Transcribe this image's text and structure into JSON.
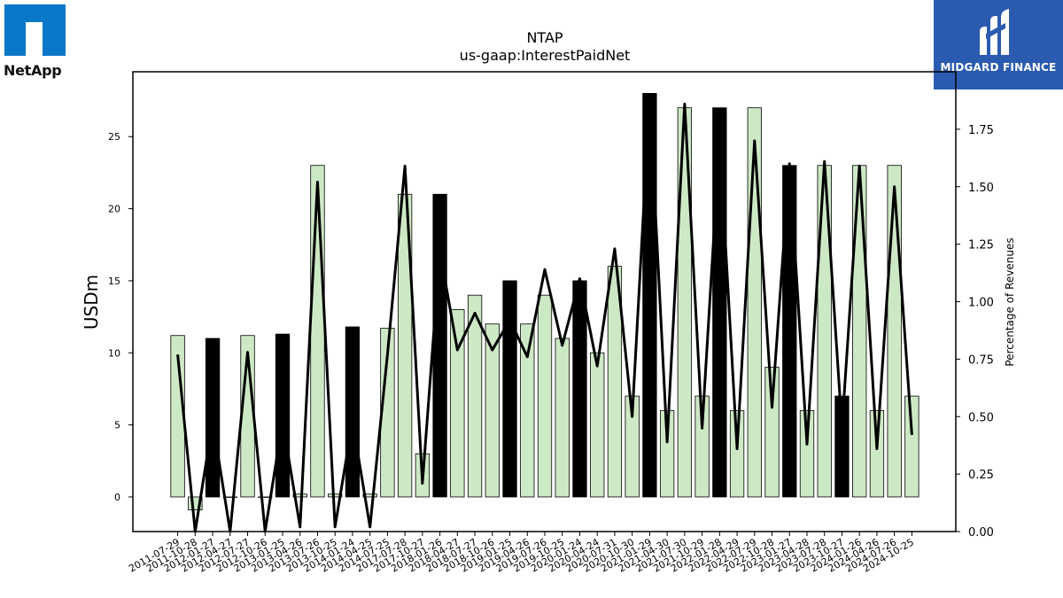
{
  "logos": {
    "left_text": "NetApp",
    "right_text": "MIDGARD FINANCE"
  },
  "chart_data": {
    "type": "bar",
    "title": "NTAP",
    "subtitle": "us-gaap:InterestPaidNet",
    "ylabel": "USDm",
    "y2label": "Percentage of Revenues",
    "ylim": [
      -2.4,
      29.5
    ],
    "y2lim": [
      0.0,
      2.0
    ],
    "yticks": [
      0,
      5,
      10,
      15,
      20,
      25
    ],
    "y2ticks": [
      "0.00",
      "0.25",
      "0.50",
      "0.75",
      "1.00",
      "1.25",
      "1.50",
      "1.75"
    ],
    "tick_labels": [
      "2011-07-29",
      "2011-10-28",
      "2012-01-27",
      "2012-04-27",
      "2012-07-27",
      "2012-10-26",
      "2013-01-25",
      "2013-04-26",
      "2013-07-26",
      "2013-10-25",
      "2014-01-24",
      "2014-04-25",
      "2014-07-25",
      "2017-07-28",
      "2017-10-27",
      "2018-01-26",
      "2018-04-27",
      "2018-07-27",
      "2018-10-26",
      "2019-01-25",
      "2019-04-26",
      "2019-07-26",
      "2019-10-25",
      "2020-01-24",
      "2020-04-24",
      "2020-07-31",
      "2020-10-30",
      "2021-01-29",
      "2021-04-30",
      "2021-07-30",
      "2021-10-29",
      "2022-01-28",
      "2022-04-29",
      "2022-07-29",
      "2022-10-28",
      "2023-01-27",
      "2023-04-28",
      "2023-07-28",
      "2023-10-27",
      "2024-01-26",
      "2024-04-26",
      "2024-07-26",
      "2024-10-25"
    ],
    "values": [
      11.2,
      -0.9,
      11.0,
      0.0,
      11.2,
      0.0,
      11.3,
      0.2,
      23.0,
      0.2,
      11.8,
      0.2,
      11.7,
      21.0,
      3.0,
      21.0,
      13.0,
      14.0,
      12.0,
      15.0,
      12.0,
      14.0,
      11.0,
      15.0,
      10.0,
      16.0,
      7.0,
      28.0,
      6.0,
      27.0,
      7.0,
      27.0,
      6.0,
      27.0,
      9.0,
      23.0,
      6.0,
      23.0,
      7.0,
      23.0,
      6.0,
      23.0,
      7.0
    ],
    "bar_colors": [
      "light",
      "light",
      "dark",
      "light",
      "light",
      "light",
      "dark",
      "light",
      "light",
      "light",
      "dark",
      "light",
      "light",
      "light",
      "light",
      "dark",
      "light",
      "light",
      "light",
      "dark",
      "light",
      "light",
      "light",
      "dark",
      "light",
      "light",
      "light",
      "dark",
      "light",
      "light",
      "light",
      "dark",
      "light",
      "light",
      "light",
      "dark",
      "light",
      "light",
      "dark",
      "light",
      "light",
      "light",
      "light"
    ],
    "pct_of_revenues": [
      0.77,
      0.0,
      0.48,
      0.0,
      0.78,
      0.0,
      0.48,
      0.02,
      1.52,
      0.02,
      0.48,
      0.02,
      0.77,
      1.59,
      0.21,
      1.22,
      0.79,
      0.95,
      0.79,
      0.92,
      0.76,
      1.14,
      0.81,
      1.1,
      0.72,
      1.23,
      0.5,
      1.88,
      0.39,
      1.86,
      0.45,
      1.7,
      0.36,
      1.7,
      0.54,
      1.6,
      0.38,
      1.61,
      0.45,
      1.59,
      0.36,
      1.5,
      0.42
    ],
    "colors": {
      "light_bar": "#cde8c5",
      "dark_bar": "#000000",
      "line": "#000000"
    },
    "grid": false,
    "legend": "none"
  }
}
